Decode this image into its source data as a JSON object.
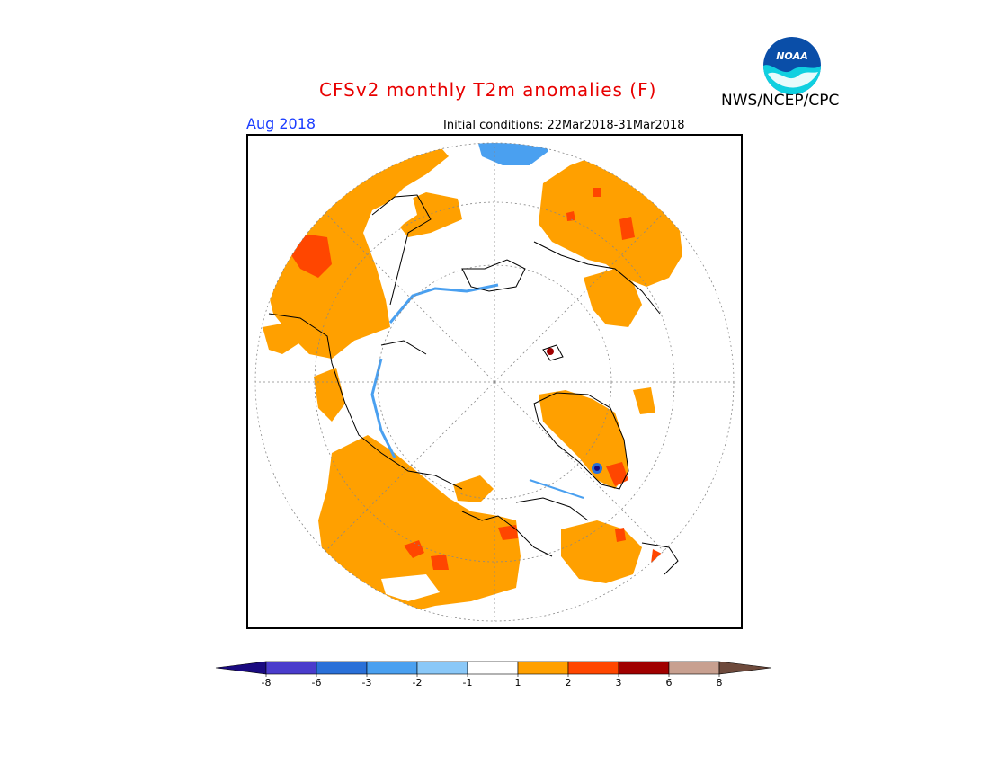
{
  "header": {
    "title": "CFSv2 monthly T2m anomalies (F)",
    "agency": "NWS/NCEP/CPC",
    "month": "Aug 2018",
    "initial_conditions": "Initial conditions: 22Mar2018-31Mar2018"
  },
  "logo": {
    "text": "NOAA"
  },
  "legend": {
    "colors": [
      "#1a0a80",
      "#4a3ccc",
      "#2a70d8",
      "#4aa0f0",
      "#8ac8f8",
      "#ffffff",
      "#ffa000",
      "#ff4600",
      "#a00000",
      "#c8a090",
      "#6e4a3c"
    ],
    "labels": [
      "-8",
      "-6",
      "-3",
      "-2",
      "-1",
      "1",
      "2",
      "3",
      "6",
      "8"
    ]
  },
  "colors": {
    "warm1": "#ffa000",
    "warm2": "#ff4600",
    "warm3": "#a00000",
    "cool1": "#8ac8f8",
    "cool2": "#4aa0f0",
    "cool3": "#2a70d8",
    "title": "#e80000",
    "month": "#1a3cff"
  }
}
